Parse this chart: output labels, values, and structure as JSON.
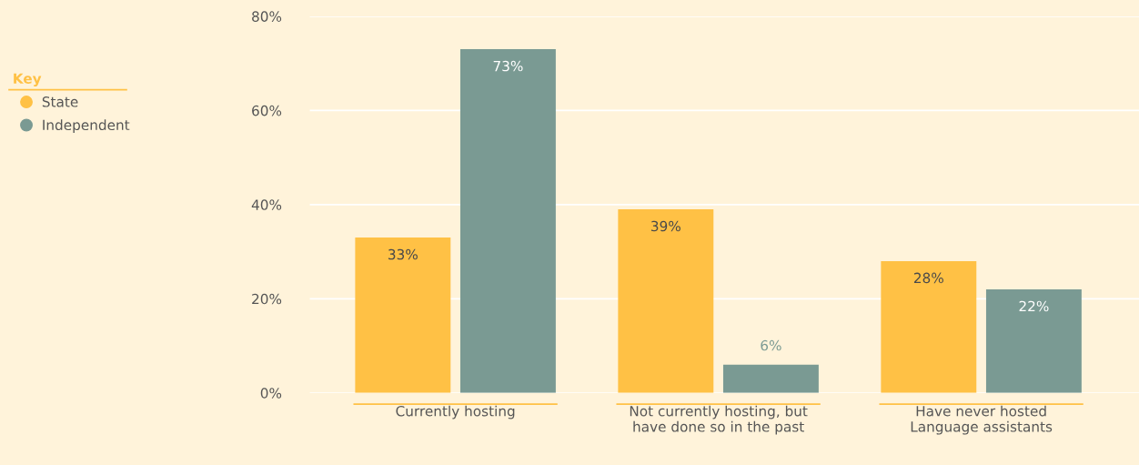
{
  "chart_data": {
    "type": "bar",
    "categories": [
      "Currently hosting",
      "Not currently hosting, but\nhave done so in the past",
      "Have never hosted\nLanguage assistants"
    ],
    "series": [
      {
        "name": "State",
        "color": "#ffc145",
        "values": [
          33,
          39,
          28
        ],
        "value_labels": [
          "33%",
          "39%",
          "28%"
        ]
      },
      {
        "name": "Independent",
        "color": "#7a9a93",
        "values": [
          73,
          6,
          22
        ],
        "value_labels": [
          "73%",
          "6%",
          "22%"
        ]
      }
    ],
    "legend_title": "Key",
    "legend": "left",
    "ylim": [
      0,
      80
    ],
    "yticks": [
      {
        "value": 0,
        "label": "0%"
      },
      {
        "value": 20,
        "label": "20%"
      },
      {
        "value": 40,
        "label": "40%"
      },
      {
        "value": 60,
        "label": "60%"
      },
      {
        "value": 80,
        "label": "80%"
      }
    ],
    "grid": "y"
  }
}
